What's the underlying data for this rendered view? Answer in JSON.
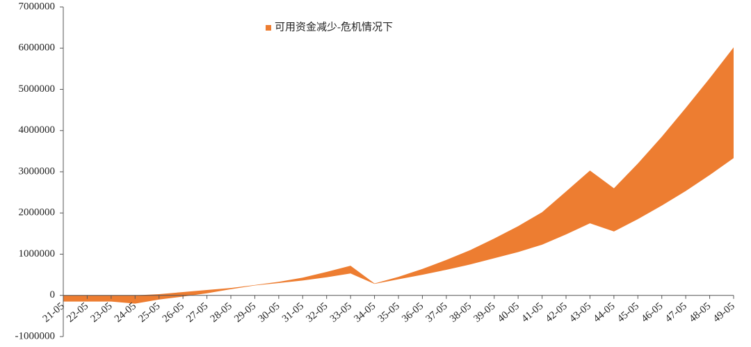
{
  "chart_data": {
    "type": "area_range",
    "categories": [
      "21-05",
      "22-05",
      "23-05",
      "24-05",
      "25-05",
      "26-05",
      "27-05",
      "28-05",
      "29-05",
      "30-05",
      "31-05",
      "32-05",
      "33-05",
      "34-05",
      "35-05",
      "36-05",
      "37-05",
      "38-05",
      "39-05",
      "40-05",
      "41-05",
      "42-05",
      "43-05",
      "44-05",
      "45-05",
      "46-05",
      "47-05",
      "48-05",
      "49-05"
    ],
    "series": [
      {
        "name": "可用资金减少-危机情况下",
        "color": "#ed7d31",
        "high": [
          0,
          0,
          0,
          0,
          30000,
          80000,
          130000,
          180000,
          250000,
          330000,
          430000,
          570000,
          720000,
          290000,
          450000,
          640000,
          860000,
          1100000,
          1380000,
          1680000,
          2020000,
          2520000,
          3030000,
          2600000,
          3200000,
          3850000,
          4550000,
          5270000,
          6020000
        ],
        "low": [
          -150000,
          -150000,
          -150000,
          -200000,
          -100000,
          -30000,
          50000,
          150000,
          240000,
          300000,
          360000,
          440000,
          530000,
          280000,
          390000,
          500000,
          620000,
          750000,
          900000,
          1050000,
          1230000,
          1480000,
          1750000,
          1550000,
          1850000,
          2180000,
          2530000,
          2920000,
          3330000
        ]
      }
    ],
    "ylim": [
      -1000000,
      7000000
    ],
    "yticks": [
      -1000000,
      0,
      1000000,
      2000000,
      3000000,
      4000000,
      5000000,
      6000000,
      7000000
    ]
  }
}
